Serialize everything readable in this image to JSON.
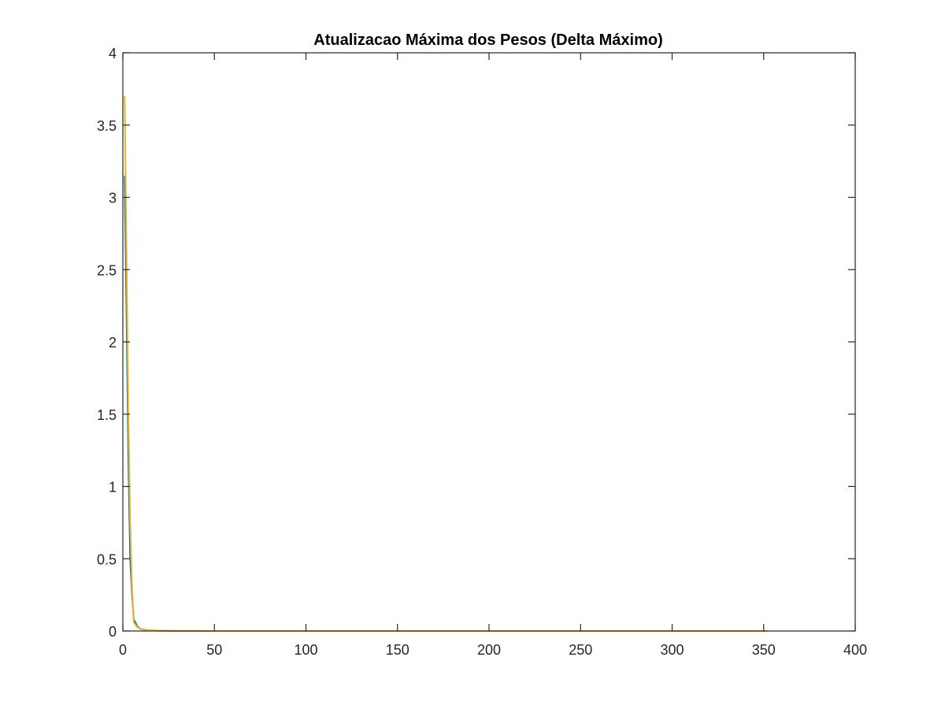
{
  "chart_data": {
    "type": "line",
    "title": "Atualizacao Máxima dos Pesos (Delta Máximo)",
    "xlabel": "",
    "ylabel": "",
    "xlim": [
      0,
      400
    ],
    "ylim": [
      0,
      4
    ],
    "xticks": [
      0,
      50,
      100,
      150,
      200,
      250,
      300,
      350,
      400
    ],
    "xtick_labels": [
      "0",
      "50",
      "100",
      "150",
      "200",
      "250",
      "300",
      "350",
      "400"
    ],
    "yticks": [
      0,
      0.5,
      1,
      1.5,
      2,
      2.5,
      3,
      3.5,
      4
    ],
    "ytick_labels": [
      "0",
      "0.5",
      "1",
      "1.5",
      "2",
      "2.5",
      "3",
      "3.5",
      "4"
    ],
    "grid": false,
    "box": true,
    "series": [
      {
        "color": "#0072BD",
        "x": [
          1,
          2,
          3,
          4,
          5,
          6,
          8,
          10,
          15,
          20,
          30,
          50,
          100,
          200,
          300,
          352
        ],
        "y": [
          3.15,
          2.2,
          1.2,
          0.5,
          0.25,
          0.08,
          0.03,
          0.012,
          0.004,
          0.002,
          0.001,
          0,
          0,
          0,
          0,
          0
        ]
      },
      {
        "color": "#EDB120",
        "x": [
          1,
          2,
          3,
          4,
          5,
          6,
          8,
          10,
          15,
          20,
          30,
          50,
          100,
          200,
          300,
          352
        ],
        "y": [
          3.7,
          2.6,
          1.5,
          0.75,
          0.3,
          0.06,
          0.025,
          0.012,
          0.005,
          0.002,
          0.001,
          0,
          0,
          0,
          0,
          0
        ]
      }
    ]
  },
  "colors": {
    "axes": "#262626",
    "background": "#ffffff"
  }
}
